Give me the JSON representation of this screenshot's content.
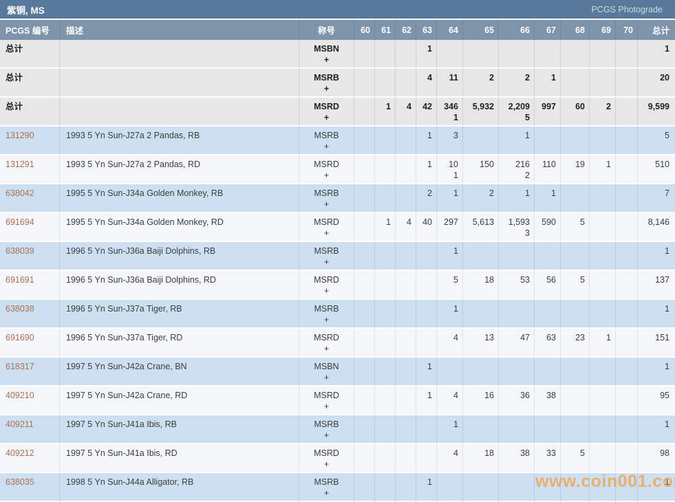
{
  "title_bar": {
    "title": "紫铜, MS",
    "photograde_link": "PCGS Photograde"
  },
  "table": {
    "headers": {
      "pcgs": "PCGS 编号",
      "desc": "描述",
      "desig": "称号",
      "grades": [
        "60",
        "61",
        "62",
        "63",
        "64",
        "65",
        "66",
        "67",
        "68",
        "69",
        "70"
      ],
      "total": "总计"
    },
    "total_rows": [
      {
        "label": "总计",
        "desig": "MSBN",
        "plus": "+",
        "g": [
          "",
          "",
          "",
          "1",
          "",
          "",
          "",
          "",
          "",
          "",
          ""
        ],
        "total": "1"
      },
      {
        "label": "总计",
        "desig": "MSRB",
        "plus": "+",
        "g": [
          "",
          "",
          "",
          "4",
          "11",
          "2",
          "2",
          "1",
          "",
          "",
          ""
        ],
        "total": "20"
      },
      {
        "label": "总计",
        "desig": "MSRD",
        "plus": "+",
        "g": [
          "",
          "1",
          "4",
          "42",
          "346",
          "5,932",
          "2,209",
          "997",
          "60",
          "2",
          ""
        ],
        "gp": [
          "",
          "",
          "",
          "",
          "1",
          "",
          "5",
          "",
          "",
          "",
          ""
        ],
        "total": "9,599"
      }
    ],
    "coin_rows": [
      {
        "number": "131290",
        "desc": "1993 5 Yn Sun-J27a 2 Pandas, RB",
        "desig": "MSRB",
        "plus": "+",
        "g": [
          "",
          "",
          "",
          "1",
          "3",
          "",
          "1",
          "",
          "",
          "",
          ""
        ],
        "total": "5"
      },
      {
        "number": "131291",
        "desc": "1993 5 Yn Sun-J27a 2 Pandas, RD",
        "desig": "MSRD",
        "plus": "+",
        "g": [
          "",
          "",
          "",
          "1",
          "10",
          "150",
          "216",
          "110",
          "19",
          "1",
          ""
        ],
        "gp": [
          "",
          "",
          "",
          "",
          "1",
          "",
          "2",
          "",
          "",
          "",
          ""
        ],
        "total": "510"
      },
      {
        "number": "638042",
        "desc": "1995 5 Yn Sun-J34a Golden Monkey, RB",
        "desig": "MSRB",
        "plus": "+",
        "g": [
          "",
          "",
          "",
          "2",
          "1",
          "2",
          "1",
          "1",
          "",
          "",
          ""
        ],
        "total": "7"
      },
      {
        "number": "691694",
        "desc": "1995 5 Yn Sun-J34a Golden Monkey, RD",
        "desig": "MSRD",
        "plus": "+",
        "g": [
          "",
          "1",
          "4",
          "40",
          "297",
          "5,613",
          "1,593",
          "590",
          "5",
          "",
          ""
        ],
        "gp": [
          "",
          "",
          "",
          "",
          "",
          "",
          "3",
          "",
          "",
          "",
          ""
        ],
        "total": "8,146"
      },
      {
        "number": "638039",
        "desc": "1996 5 Yn Sun-J36a Baiji Dolphins, RB",
        "desig": "MSRB",
        "plus": "+",
        "g": [
          "",
          "",
          "",
          "",
          "1",
          "",
          "",
          "",
          "",
          "",
          ""
        ],
        "total": "1"
      },
      {
        "number": "691691",
        "desc": "1996 5 Yn Sun-J36a Baiji Dolphins, RD",
        "desig": "MSRD",
        "plus": "+",
        "g": [
          "",
          "",
          "",
          "",
          "5",
          "18",
          "53",
          "56",
          "5",
          "",
          ""
        ],
        "total": "137"
      },
      {
        "number": "638038",
        "desc": "1996 5 Yn Sun-J37a Tiger, RB",
        "desig": "MSRB",
        "plus": "+",
        "g": [
          "",
          "",
          "",
          "",
          "1",
          "",
          "",
          "",
          "",
          "",
          ""
        ],
        "total": "1"
      },
      {
        "number": "691690",
        "desc": "1996 5 Yn Sun-J37a Tiger, RD",
        "desig": "MSRD",
        "plus": "+",
        "g": [
          "",
          "",
          "",
          "",
          "4",
          "13",
          "47",
          "63",
          "23",
          "1",
          ""
        ],
        "total": "151"
      },
      {
        "number": "618317",
        "desc": "1997 5 Yn Sun-J42a Crane, BN",
        "desig": "MSBN",
        "plus": "+",
        "g": [
          "",
          "",
          "",
          "1",
          "",
          "",
          "",
          "",
          "",
          "",
          ""
        ],
        "total": "1"
      },
      {
        "number": "409210",
        "desc": "1997 5 Yn Sun-J42a Crane, RD",
        "desig": "MSRD",
        "plus": "+",
        "g": [
          "",
          "",
          "",
          "1",
          "4",
          "16",
          "36",
          "38",
          "",
          "",
          ""
        ],
        "total": "95"
      },
      {
        "number": "409211",
        "desc": "1997 5 Yn Sun-J41a Ibis, RB",
        "desig": "MSRB",
        "plus": "+",
        "g": [
          "",
          "",
          "",
          "",
          "1",
          "",
          "",
          "",
          "",
          "",
          ""
        ],
        "total": "1"
      },
      {
        "number": "409212",
        "desc": "1997 5 Yn Sun-J41a Ibis, RD",
        "desig": "MSRD",
        "plus": "+",
        "g": [
          "",
          "",
          "",
          "",
          "4",
          "18",
          "38",
          "33",
          "5",
          "",
          ""
        ],
        "total": "98"
      },
      {
        "number": "638035",
        "desc": "1998 5 Yn Sun-J44a Alligator, RB",
        "desig": "MSRB",
        "plus": "+",
        "g": [
          "",
          "",
          "",
          "1",
          "",
          "",
          "",
          "",
          "",
          "",
          ""
        ],
        "total": "1"
      }
    ]
  },
  "watermark": "www.coin001.com",
  "colors": {
    "title_bar_bg": "#58799a",
    "header_row_bg": "#7d94ab",
    "total_row_bg": "#e7e7e7",
    "row_blue": "#cde0f1",
    "row_white": "#f4f7fa",
    "pcgs_link": "#ae6f52",
    "watermark": "#eea352"
  }
}
